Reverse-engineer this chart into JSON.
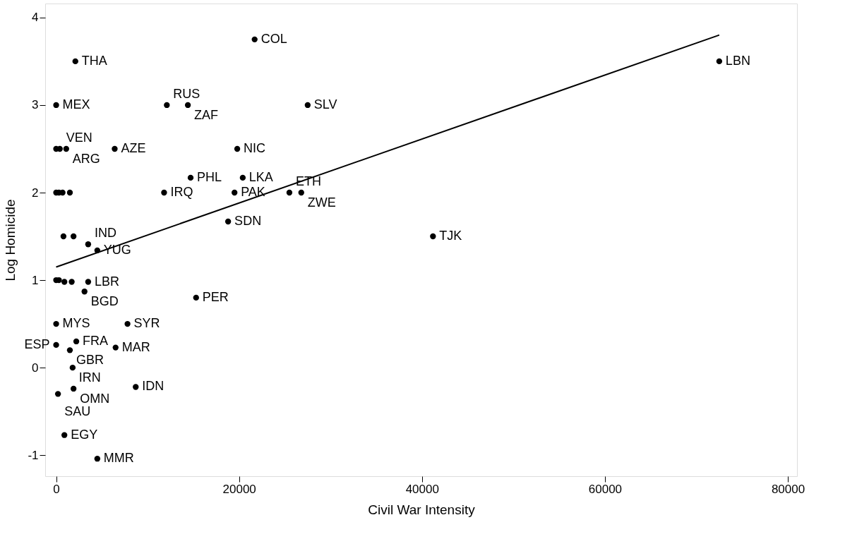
{
  "chart_data": {
    "type": "scatter",
    "xlabel": "Civil War Intensity",
    "ylabel": "Log Homicide",
    "xlim": [
      -1200,
      81000
    ],
    "ylim": [
      -1.24,
      4.16
    ],
    "xticks": [
      0,
      20000,
      40000,
      60000,
      80000
    ],
    "yticks": [
      -1,
      0,
      1,
      2,
      3,
      4
    ],
    "grid": false,
    "series": [
      {
        "type": "scatter",
        "marker": "circle",
        "color": "#000000",
        "x": [
          21700,
          2100,
          72500,
          0,
          12100,
          14400,
          27500,
          0,
          400,
          1100,
          6400,
          19800,
          14700,
          20400,
          11800,
          19500,
          25500,
          26800,
          0,
          300,
          700,
          1500,
          18800,
          41200,
          800,
          1900,
          3500,
          4500,
          0,
          300,
          900,
          1700,
          3500,
          3100,
          15300,
          0,
          7800,
          2200,
          0,
          1500,
          6500,
          1800,
          8700,
          1900,
          200,
          900,
          4500
        ],
        "values": [
          3.75,
          3.5,
          3.5,
          3.0,
          3.0,
          3.0,
          3.0,
          2.5,
          2.5,
          2.5,
          2.5,
          2.5,
          2.17,
          2.17,
          2.0,
          2.0,
          2.0,
          2.0,
          2.0,
          2.0,
          2.0,
          2.0,
          1.67,
          1.5,
          1.5,
          1.5,
          1.41,
          1.34,
          1.0,
          1.0,
          0.98,
          0.98,
          0.98,
          0.87,
          0.8,
          0.5,
          0.5,
          0.3,
          0.26,
          0.2,
          0.23,
          0.0,
          -0.22,
          -0.24,
          -0.3,
          -0.77,
          -1.04
        ]
      },
      {
        "type": "line",
        "color": "#000000",
        "x": [
          0,
          72500
        ],
        "values": [
          1.15,
          3.8
        ]
      }
    ],
    "annotations": [
      {
        "text": "COL",
        "x": 21700,
        "y": 3.75
      },
      {
        "text": "THA",
        "x": 2100,
        "y": 3.5
      },
      {
        "text": "LBN",
        "x": 72500,
        "y": 3.5
      },
      {
        "text": "MEX",
        "x": 0,
        "y": 3.0
      },
      {
        "text": "RUS",
        "x": 12100,
        "y": 3.0
      },
      {
        "text": "ZAF",
        "x": 14400,
        "y": 3.0
      },
      {
        "text": "SLV",
        "x": 27500,
        "y": 3.0
      },
      {
        "text": "VEN",
        "x": 400,
        "y": 2.5
      },
      {
        "text": "ARG",
        "x": 1100,
        "y": 2.5
      },
      {
        "text": "AZE",
        "x": 6400,
        "y": 2.5
      },
      {
        "text": "NIC",
        "x": 19800,
        "y": 2.5
      },
      {
        "text": "PHL",
        "x": 14700,
        "y": 2.17
      },
      {
        "text": "LKA",
        "x": 20400,
        "y": 2.17
      },
      {
        "text": "IRQ",
        "x": 11800,
        "y": 2.0
      },
      {
        "text": "PAK",
        "x": 19500,
        "y": 2.0
      },
      {
        "text": "ETH",
        "x": 25500,
        "y": 2.0
      },
      {
        "text": "ZWE",
        "x": 26800,
        "y": 2.0
      },
      {
        "text": "SDN",
        "x": 18800,
        "y": 1.67
      },
      {
        "text": "TJK",
        "x": 41200,
        "y": 1.5
      },
      {
        "text": "IND",
        "x": 3500,
        "y": 1.41
      },
      {
        "text": "YUG",
        "x": 4500,
        "y": 1.34
      },
      {
        "text": "LBR",
        "x": 3500,
        "y": 0.98
      },
      {
        "text": "BGD",
        "x": 3100,
        "y": 0.87
      },
      {
        "text": "PER",
        "x": 15300,
        "y": 0.8
      },
      {
        "text": "MYS",
        "x": 0,
        "y": 0.5
      },
      {
        "text": "SYR",
        "x": 7800,
        "y": 0.5
      },
      {
        "text": "FRA",
        "x": 2200,
        "y": 0.3
      },
      {
        "text": "ESP",
        "x": 0,
        "y": 0.26
      },
      {
        "text": "GBR",
        "x": 1500,
        "y": 0.2
      },
      {
        "text": "MAR",
        "x": 6500,
        "y": 0.23
      },
      {
        "text": "IRN",
        "x": 1800,
        "y": 0.0
      },
      {
        "text": "IDN",
        "x": 8700,
        "y": -0.22
      },
      {
        "text": "OMN",
        "x": 1900,
        "y": -0.24
      },
      {
        "text": "SAU",
        "x": 200,
        "y": -0.3
      },
      {
        "text": "EGY",
        "x": 900,
        "y": -0.77
      },
      {
        "text": "MMR",
        "x": 4500,
        "y": -1.04
      }
    ]
  }
}
